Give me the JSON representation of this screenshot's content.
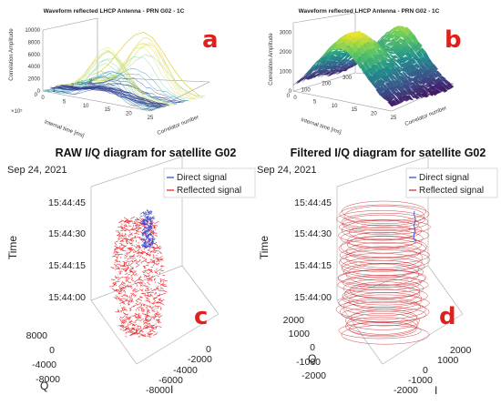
{
  "chart_data": [
    {
      "id": "a",
      "type": "surface-3d-waterfall",
      "panel_label": "a",
      "title": "Waveform reflected LHCP Antenna - PRN  G02 - 1C",
      "zlabel": "Correlation Amplitude",
      "ylabel": "Internal time [ms]",
      "xlabel": "Correlator number",
      "z_ticks": [
        "10000",
        "8000",
        "6000",
        "4000",
        "2000",
        "0"
      ],
      "y_ticks": [
        "0",
        "1",
        "2",
        "3"
      ],
      "y_exponent": "×10⁵",
      "x_ticks": [
        "0",
        "5",
        "10",
        "15",
        "20",
        "25"
      ],
      "zlim": [
        0,
        10000
      ],
      "xlim": [
        0,
        25
      ],
      "ylim": [
        0,
        3
      ],
      "xticks_num": [
        0,
        5,
        10,
        15,
        20,
        25
      ],
      "ridge_x": [
        0,
        2,
        4,
        6,
        8,
        10,
        12,
        14,
        16,
        18,
        20,
        22,
        24,
        25
      ],
      "ridge_z": [
        600,
        1500,
        3000,
        5000,
        7000,
        8500,
        9200,
        8600,
        7000,
        5000,
        3200,
        1800,
        900,
        500
      ]
    },
    {
      "id": "b",
      "type": "surface-3d",
      "panel_label": "b",
      "title": "Waveform reflected LHCP Antenna - PRN  G02 - 1C",
      "zlabel": "Correlation Amplitude",
      "ylabel": "Internal time [ms]",
      "xlabel": "Correlator number",
      "z_ticks": [
        "3000",
        "2000",
        "1000",
        "0"
      ],
      "y_ticks": [
        "0",
        "100",
        "200",
        "300"
      ],
      "x_ticks": [
        "0",
        "5",
        "10",
        "15",
        "20",
        "25"
      ],
      "zlim": [
        0,
        3500
      ],
      "xlim": [
        0,
        25
      ],
      "ylim": [
        0,
        300
      ],
      "xticks_num": [
        0,
        5,
        10,
        15,
        20,
        25
      ],
      "ridge_x": [
        0,
        2,
        4,
        6,
        8,
        10,
        12,
        14,
        16,
        18,
        20,
        22,
        24,
        25
      ],
      "ridge_z": [
        400,
        900,
        1500,
        2100,
        2700,
        3100,
        3300,
        3100,
        2600,
        2000,
        1400,
        900,
        500,
        300
      ]
    },
    {
      "id": "c",
      "type": "scatter-3d",
      "panel_label": "c",
      "title": "RAW I/Q diagram for satellite G02",
      "date": "Sep 24, 2021",
      "zlabel": "Time",
      "ylabel": "Q",
      "xlabel": "I",
      "z_ticks": [
        "15:44:45",
        "15:44:30",
        "15:44:15",
        "15:44:00"
      ],
      "q_ticks": [
        "8000",
        "0",
        "-4000",
        "-8000"
      ],
      "i_ticks": [
        "0",
        "-2000",
        "-4000",
        "-6000",
        "-8000"
      ],
      "legend": [
        "Direct signal",
        "Reflected signal"
      ],
      "series": [
        {
          "name": "Direct signal",
          "color": "#2b3fd1"
        },
        {
          "name": "Reflected signal",
          "color": "#e8141a"
        }
      ]
    },
    {
      "id": "d",
      "type": "scatter-3d",
      "panel_label": "d",
      "title": "Filtered I/Q diagram for satellite G02",
      "date": "Sep 24, 2021",
      "zlabel": "Time",
      "ylabel": "Q",
      "xlabel": "I",
      "z_ticks": [
        "15:44:45",
        "15:44:30",
        "15:44:15",
        "15:44:00"
      ],
      "q_ticks": [
        "2000",
        "1000",
        "0",
        "-1000",
        "-2000"
      ],
      "i_ticks": [
        "2000",
        "1000",
        "0",
        "-1000",
        "-2000"
      ],
      "legend": [
        "Direct signal",
        "Reflected signal"
      ],
      "series": [
        {
          "name": "Direct signal",
          "color": "#2b3fd1"
        },
        {
          "name": "Reflected signal",
          "color": "#c8262a"
        }
      ]
    }
  ]
}
